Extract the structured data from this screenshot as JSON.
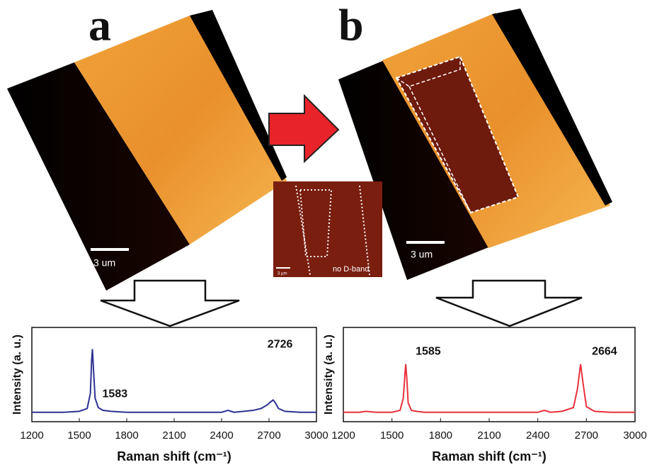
{
  "panel_labels": [
    "a",
    "b"
  ],
  "scale_bars": [
    "3 um",
    "3 um"
  ],
  "inset": {
    "label": "no D-band",
    "scale": "3 μm"
  },
  "chart_data": [
    {
      "type": "line",
      "xlabel": "Raman shift (cm⁻¹)",
      "ylabel": "Intensity (a. u.)",
      "x": [
        1200,
        1300,
        1400,
        1500,
        1550,
        1570,
        1578,
        1583,
        1590,
        1600,
        1620,
        1650,
        1700,
        1800,
        2000,
        2200,
        2400,
        2440,
        2460,
        2480,
        2600,
        2650,
        2690,
        2710,
        2726,
        2740,
        2760,
        2800,
        2900,
        3000
      ],
      "series": [
        {
          "color": "#2e3192",
          "values": [
            0.1,
            0.1,
            0.1,
            0.11,
            0.14,
            0.3,
            0.65,
            0.77,
            0.55,
            0.25,
            0.15,
            0.12,
            0.11,
            0.1,
            0.1,
            0.1,
            0.1,
            0.12,
            0.11,
            0.1,
            0.12,
            0.14,
            0.18,
            0.21,
            0.23,
            0.2,
            0.14,
            0.11,
            0.1,
            0.1
          ]
        }
      ],
      "xlim": [
        1200,
        3000
      ],
      "xticks": [
        1200,
        1500,
        1800,
        2100,
        2400,
        2700,
        3000
      ],
      "ylim": [
        0,
        1
      ],
      "peaks": [
        1583,
        2726
      ]
    },
    {
      "type": "line",
      "xlabel": "Raman shift (cm⁻¹)",
      "ylabel": "Intensity (a. u.)",
      "x": [
        1200,
        1300,
        1340,
        1400,
        1500,
        1550,
        1570,
        1580,
        1585,
        1592,
        1600,
        1620,
        1650,
        1700,
        1800,
        2000,
        2200,
        2400,
        2440,
        2460,
        2480,
        2550,
        2620,
        2645,
        2664,
        2680,
        2700,
        2750,
        2850,
        3000
      ],
      "series": [
        {
          "color": "#e8303a",
          "values": [
            0.1,
            0.1,
            0.11,
            0.1,
            0.1,
            0.12,
            0.25,
            0.5,
            0.61,
            0.45,
            0.2,
            0.12,
            0.11,
            0.1,
            0.1,
            0.1,
            0.1,
            0.1,
            0.12,
            0.11,
            0.1,
            0.11,
            0.15,
            0.35,
            0.61,
            0.4,
            0.16,
            0.11,
            0.1,
            0.1
          ]
        }
      ],
      "xlim": [
        1200,
        3000
      ],
      "xticks": [
        1200,
        1500,
        1800,
        2100,
        2400,
        2700,
        3000
      ],
      "ylim": [
        0,
        1
      ],
      "peaks": [
        1585,
        2664
      ]
    }
  ]
}
